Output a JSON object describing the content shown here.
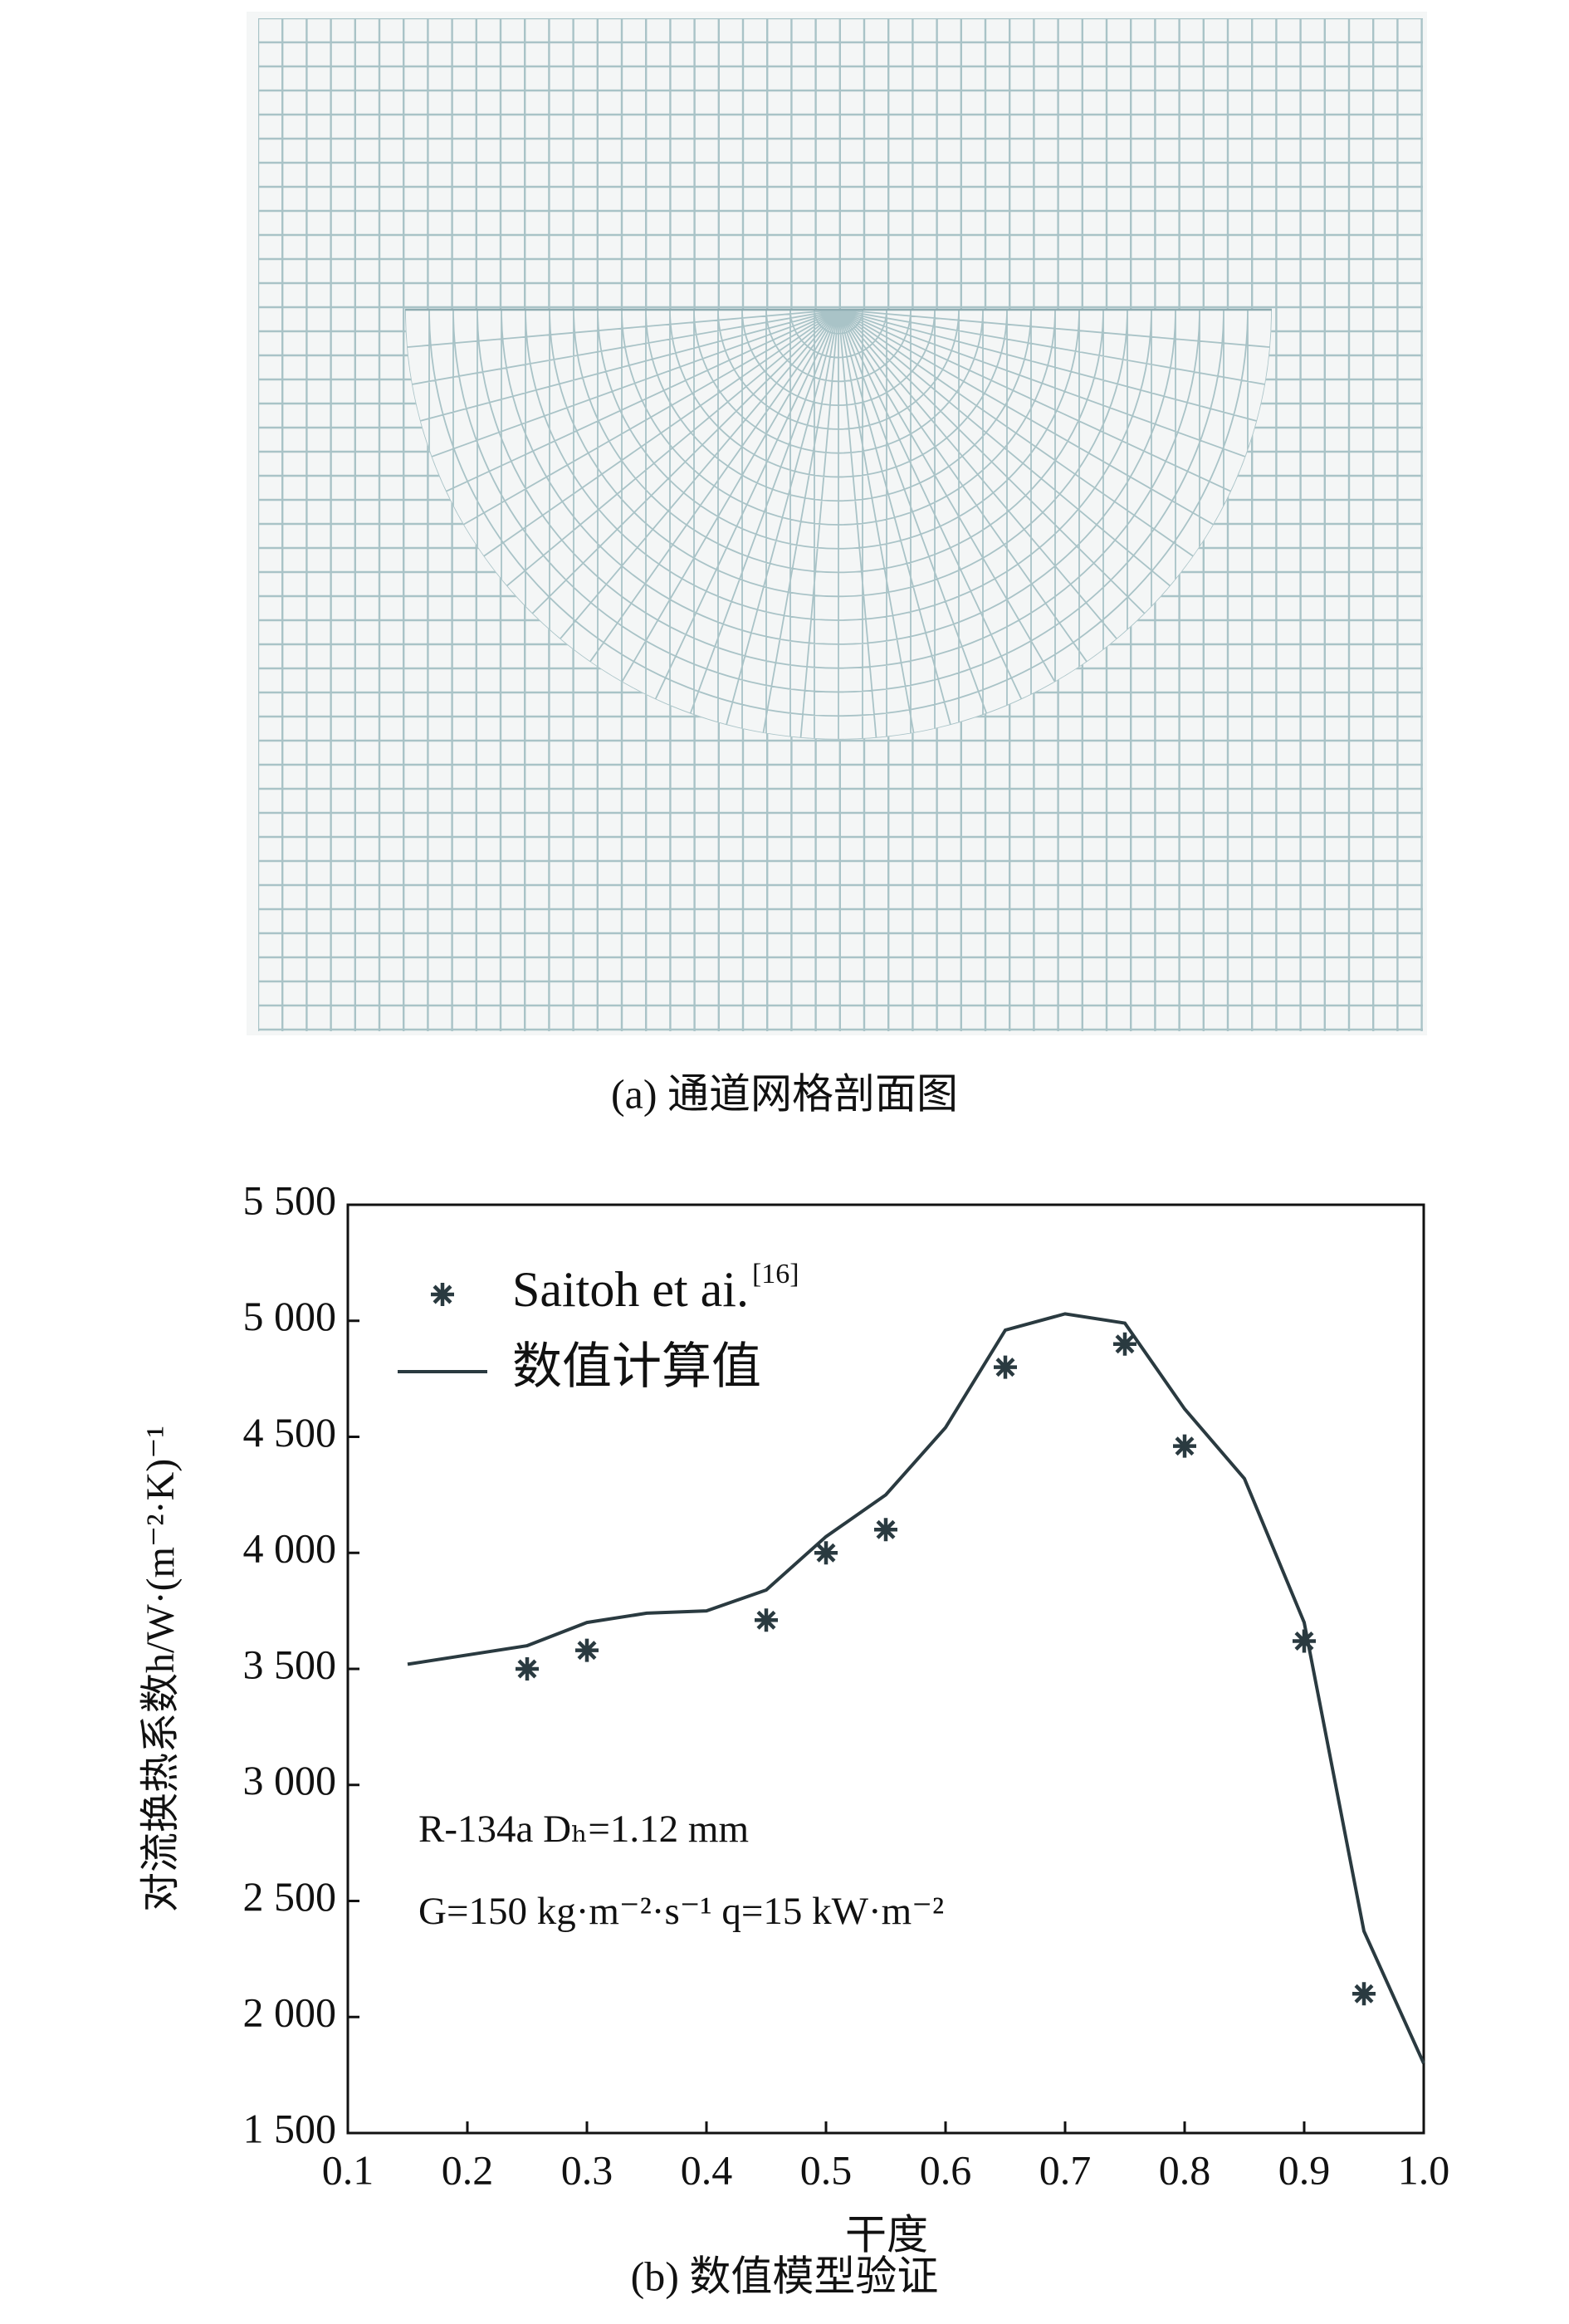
{
  "figure_a": {
    "caption": "(a) 通道网格剖面图"
  },
  "chart_data": {
    "type": "line",
    "caption": "(b) 数值模型验证",
    "x_label": "干度",
    "y_label": "对流换热系数h/W·(m⁻²·K)⁻¹",
    "annotations": [
      "R-134a  Dₕ=1.12 mm",
      "G=150 kg·m⁻²·s⁻¹  q=15 kW·m⁻²"
    ],
    "xlim": [
      0.1,
      1.0
    ],
    "xticks": [
      0.1,
      0.2,
      0.3,
      0.4,
      0.5,
      0.6,
      0.7,
      0.8,
      0.9,
      {
        "value": 1.0,
        "label": "1.0"
      }
    ],
    "ylim": [
      1500,
      5500
    ],
    "yticks": [
      {
        "value": 1500,
        "label": "1 500"
      },
      {
        "value": 2000,
        "label": "2 000"
      },
      {
        "value": 2500,
        "label": "2 500"
      },
      {
        "value": 3000,
        "label": "3 000"
      },
      {
        "value": 3500,
        "label": "3 500"
      },
      {
        "value": 4000,
        "label": "4 000"
      },
      {
        "value": 4500,
        "label": "4 500"
      },
      {
        "value": 5000,
        "label": "5 000"
      },
      {
        "value": 5500,
        "label": "5 500"
      }
    ],
    "legend": "upper left",
    "series": [
      {
        "name": "Saitoh et ai.",
        "name_superscript": "[16]",
        "mark": "asterisk",
        "color": "#2a3a40",
        "x": [
          0.25,
          0.3,
          0.45,
          0.5,
          0.55,
          0.65,
          0.75,
          0.8,
          0.9,
          0.95
        ],
        "values": [
          3500,
          3580,
          3710,
          4000,
          4100,
          4800,
          4900,
          4460,
          3620,
          2100
        ]
      },
      {
        "name": "数值计算值",
        "mark": "line",
        "color": "#2a3a40",
        "x": [
          0.15,
          0.25,
          0.3,
          0.35,
          0.4,
          0.45,
          0.5,
          0.55,
          0.6,
          0.65,
          0.7,
          0.75,
          0.8,
          0.85,
          0.9,
          0.95,
          1.0
        ],
        "values": [
          3520,
          3600,
          3700,
          3740,
          3750,
          3840,
          4070,
          4250,
          4540,
          4960,
          5030,
          4990,
          4620,
          4320,
          3700,
          2370,
          1800
        ]
      }
    ]
  }
}
